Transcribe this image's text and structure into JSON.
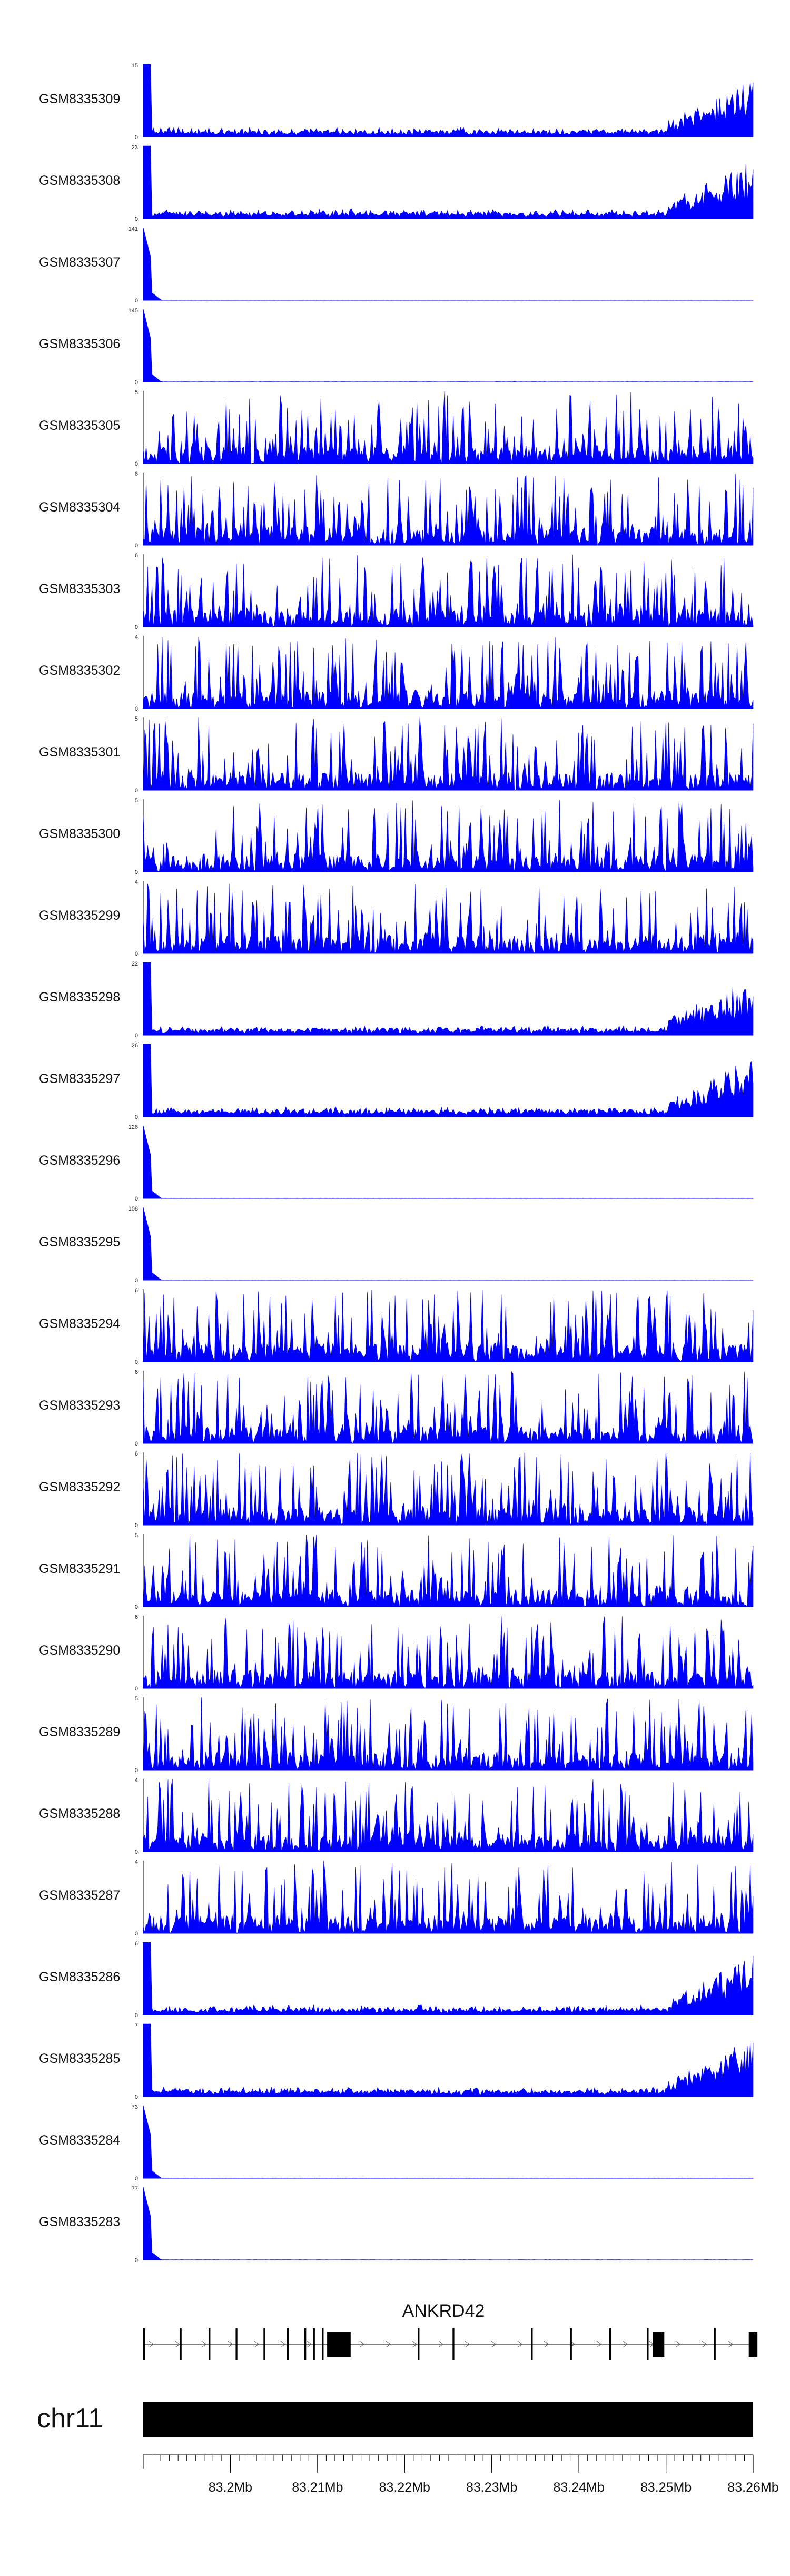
{
  "chart_data": {
    "type": "area",
    "genome": {
      "chromosome": "chr11",
      "region_start_mb": 83.19,
      "region_end_mb": 83.26,
      "axis_ticks": [
        "83.2Mb",
        "83.21Mb",
        "83.22Mb",
        "83.23Mb",
        "83.24Mb",
        "83.25Mb",
        "83.26Mb"
      ],
      "axis_tick_values": [
        83.2,
        83.21,
        83.22,
        83.23,
        83.24,
        83.25,
        83.26
      ]
    },
    "gene": {
      "name": "ANKRD42",
      "strand": "+",
      "exons_mb": [
        [
          83.19,
          83.1902
        ],
        [
          83.1942,
          83.1944
        ],
        [
          83.1975,
          83.1977
        ],
        [
          83.2006,
          83.2008
        ],
        [
          83.2038,
          83.204
        ],
        [
          83.2065,
          83.2067
        ],
        [
          83.2085,
          83.2087
        ],
        [
          83.2095,
          83.2097
        ],
        [
          83.2105,
          83.2107
        ],
        [
          83.2111,
          83.2138
        ],
        [
          83.2215,
          83.2217
        ],
        [
          83.2255,
          83.2257
        ],
        [
          83.2345,
          83.2347
        ],
        [
          83.239,
          83.2392
        ],
        [
          83.2435,
          83.2437
        ],
        [
          83.2478,
          83.248
        ],
        [
          83.2485,
          83.2498
        ],
        [
          83.2555,
          83.2557
        ],
        [
          83.2595,
          83.2605
        ]
      ]
    },
    "color": "#0000ff",
    "tracks": [
      {
        "name": "GSM8335309",
        "ymax": "15",
        "ymin": "0",
        "peak": 15,
        "pattern": "rise"
      },
      {
        "name": "GSM8335308",
        "ymax": "23",
        "ymin": "0",
        "peak": 23,
        "pattern": "rise"
      },
      {
        "name": "GSM8335307",
        "ymax": "141",
        "ymin": "0",
        "peak": 141,
        "pattern": "spike"
      },
      {
        "name": "GSM8335306",
        "ymax": "145",
        "ymin": "0",
        "peak": 145,
        "pattern": "spike"
      },
      {
        "name": "GSM8335305",
        "ymax": "5",
        "ymin": "0",
        "peak": 5,
        "pattern": "noise"
      },
      {
        "name": "GSM8335304",
        "ymax": "6",
        "ymin": "0",
        "peak": 6,
        "pattern": "noise"
      },
      {
        "name": "GSM8335303",
        "ymax": "6",
        "ymin": "0",
        "peak": 6,
        "pattern": "noise"
      },
      {
        "name": "GSM8335302",
        "ymax": "4",
        "ymin": "0",
        "peak": 4,
        "pattern": "noise"
      },
      {
        "name": "GSM8335301",
        "ymax": "5",
        "ymin": "0",
        "peak": 5,
        "pattern": "noise"
      },
      {
        "name": "GSM8335300",
        "ymax": "5",
        "ymin": "0",
        "peak": 5,
        "pattern": "noise"
      },
      {
        "name": "GSM8335299",
        "ymax": "4",
        "ymin": "0",
        "peak": 4,
        "pattern": "noise"
      },
      {
        "name": "GSM8335298",
        "ymax": "22",
        "ymin": "0",
        "peak": 22,
        "pattern": "rise"
      },
      {
        "name": "GSM8335297",
        "ymax": "26",
        "ymin": "0",
        "peak": 26,
        "pattern": "rise"
      },
      {
        "name": "GSM8335296",
        "ymax": "126",
        "ymin": "0",
        "peak": 126,
        "pattern": "spike"
      },
      {
        "name": "GSM8335295",
        "ymax": "108",
        "ymin": "0",
        "peak": 108,
        "pattern": "spike"
      },
      {
        "name": "GSM8335294",
        "ymax": "6",
        "ymin": "0",
        "peak": 6,
        "pattern": "noise"
      },
      {
        "name": "GSM8335293",
        "ymax": "6",
        "ymin": "0",
        "peak": 6,
        "pattern": "noise"
      },
      {
        "name": "GSM8335292",
        "ymax": "6",
        "ymin": "0",
        "peak": 6,
        "pattern": "noise"
      },
      {
        "name": "GSM8335291",
        "ymax": "5",
        "ymin": "0",
        "peak": 5,
        "pattern": "noise"
      },
      {
        "name": "GSM8335290",
        "ymax": "6",
        "ymin": "0",
        "peak": 6,
        "pattern": "noise"
      },
      {
        "name": "GSM8335289",
        "ymax": "5",
        "ymin": "0",
        "peak": 5,
        "pattern": "noise"
      },
      {
        "name": "GSM8335288",
        "ymax": "4",
        "ymin": "0",
        "peak": 4,
        "pattern": "noise"
      },
      {
        "name": "GSM8335287",
        "ymax": "4",
        "ymin": "0",
        "peak": 4,
        "pattern": "noise"
      },
      {
        "name": "GSM8335286",
        "ymax": "6",
        "ymin": "0",
        "peak": 6,
        "pattern": "rise"
      },
      {
        "name": "GSM8335285",
        "ymax": "7",
        "ymin": "0",
        "peak": 7,
        "pattern": "rise"
      },
      {
        "name": "GSM8335284",
        "ymax": "73",
        "ymin": "0",
        "peak": 73,
        "pattern": "spike"
      },
      {
        "name": "GSM8335283",
        "ymax": "77",
        "ymin": "0",
        "peak": 77,
        "pattern": "spike"
      }
    ]
  }
}
